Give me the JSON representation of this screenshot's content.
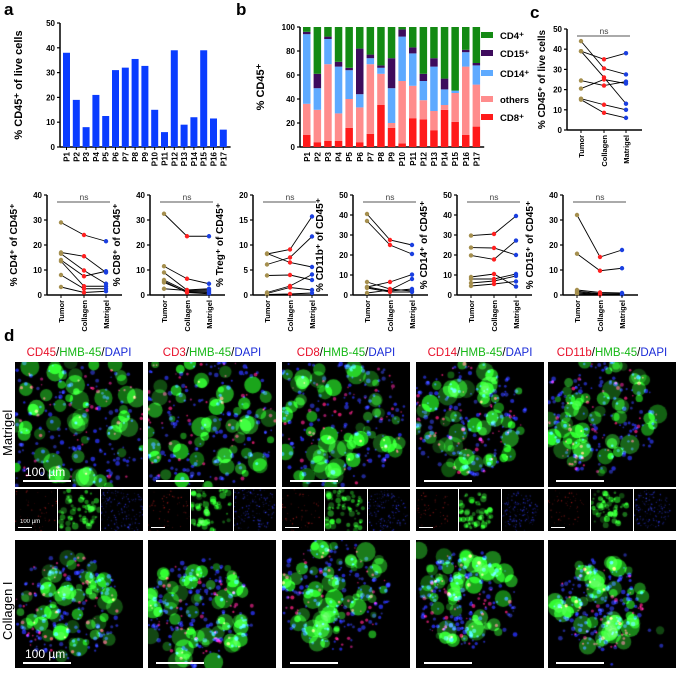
{
  "panels": {
    "a": "a",
    "b": "b",
    "c": "c",
    "d": "d"
  },
  "colors": {
    "bar": "#0a3cff",
    "tumor": "#a58f4e",
    "collagen": "#ff2020",
    "matrigel": "#1a3fe0",
    "CD4": "#138a13",
    "CD15": "#3d0b5c",
    "CD14": "#5eaaff",
    "others": "#ff8c8c",
    "CD8": "#ff1a1a"
  },
  "chart_data": [
    {
      "id": "a",
      "type": "bar",
      "ylabel": "% CD45⁺ of live cells",
      "ylim": [
        0,
        50
      ],
      "yticks": [
        0,
        10,
        20,
        30,
        40,
        50
      ],
      "categories": [
        "P1",
        "P2",
        "P3",
        "P4",
        "P5",
        "P6",
        "P7",
        "P8",
        "P9",
        "P10",
        "P11",
        "P12",
        "P13",
        "P14",
        "P15",
        "P16",
        "P17"
      ],
      "values": [
        38,
        19,
        8,
        21,
        12.5,
        31,
        32,
        35.5,
        32.7,
        15,
        6,
        39,
        9,
        12,
        39,
        11.5,
        7
      ]
    },
    {
      "id": "b",
      "type": "bar",
      "stacked": true,
      "ylabel": "% CD45⁺",
      "ylim": [
        0,
        100
      ],
      "yticks": [
        0,
        20,
        40,
        60,
        80,
        100
      ],
      "legend_position": "right",
      "categories": [
        "P1",
        "P2",
        "P3",
        "P4",
        "P5",
        "P6",
        "P7",
        "P8",
        "P9",
        "P10",
        "P11",
        "P12",
        "P13",
        "P14",
        "P15",
        "P16",
        "P17"
      ],
      "series": [
        {
          "name": "CD8⁺",
          "key": "CD8",
          "values": [
            10,
            4,
            5,
            5,
            16,
            4,
            11,
            35,
            16,
            3,
            24,
            23,
            14,
            31,
            21,
            10,
            17
          ]
        },
        {
          "name": "others",
          "key": "others",
          "values": [
            26,
            27,
            64,
            23,
            24,
            29,
            58,
            26,
            4,
            52,
            27,
            16,
            16,
            4,
            24,
            57,
            35
          ]
        },
        {
          "name": "CD14⁺",
          "key": "CD14",
          "values": [
            58,
            18,
            21,
            39,
            24,
            11,
            5,
            5,
            29,
            37,
            27,
            16,
            37,
            13,
            2,
            12,
            16
          ]
        },
        {
          "name": "CD15⁺",
          "key": "CD15",
          "values": [
            2,
            12,
            2,
            4,
            2,
            38,
            3,
            2,
            25,
            6,
            5,
            6,
            7,
            9,
            0,
            2,
            2
          ]
        },
        {
          "name": "CD4⁺",
          "key": "CD4",
          "values": [
            4,
            39,
            8,
            29,
            34,
            18,
            23,
            32,
            26,
            2,
            17,
            39,
            26,
            43,
            53,
            19,
            30
          ]
        }
      ],
      "legend_order": [
        "CD4",
        "CD15",
        "CD14",
        "others",
        "CD8"
      ]
    },
    {
      "id": "c",
      "type": "scatter",
      "paired": true,
      "ylabel": "% CD45⁺ of live cells",
      "ylim": [
        0,
        50
      ],
      "yticks": [
        0,
        10,
        20,
        30,
        40,
        50
      ],
      "categories": [
        "Tumor",
        "Collagen",
        "Matrigel"
      ],
      "annotation": "ns",
      "pairs": [
        [
          44,
          30.5,
          27.5
        ],
        [
          39,
          35,
          38
        ],
        [
          39,
          26,
          13
        ],
        [
          24.5,
          22,
          24
        ],
        [
          20.5,
          25,
          23
        ],
        [
          15.5,
          12.5,
          10
        ],
        [
          15,
          8.5,
          6
        ]
      ]
    },
    {
      "id": "cd4",
      "type": "scatter",
      "paired": true,
      "ylabel": "% CD4⁺ of  CD45⁺",
      "ylim": [
        0,
        40
      ],
      "yticks": [
        0,
        10,
        20,
        30,
        40
      ],
      "categories": [
        "Tumor",
        "Collagen",
        "Matrigel"
      ],
      "annotation": "ns",
      "pairs": [
        [
          29,
          24,
          21.5
        ],
        [
          17,
          15.5,
          9
        ],
        [
          16.5,
          9.8,
          4.5
        ],
        [
          14,
          7.5,
          9.5
        ],
        [
          13.5,
          3.5,
          3.5
        ],
        [
          8,
          2.5,
          2.5
        ],
        [
          3.2,
          1,
          1.5
        ]
      ]
    },
    {
      "id": "cd8",
      "type": "scatter",
      "paired": true,
      "ylabel": "% CD8⁺ of  CD45⁺",
      "ylim": [
        0,
        40
      ],
      "yticks": [
        0,
        10,
        20,
        30,
        40
      ],
      "categories": [
        "Tumor",
        "Collagen",
        "Matrigel"
      ],
      "annotation": "ns",
      "pairs": [
        [
          32.5,
          23.5,
          23.5
        ],
        [
          11.5,
          6.5,
          4.5
        ],
        [
          9,
          2,
          2.5
        ],
        [
          6,
          1.5,
          1.5
        ],
        [
          5.5,
          1,
          0.5
        ],
        [
          2.5,
          1.8,
          2
        ],
        [
          5,
          1.2,
          1
        ]
      ]
    },
    {
      "id": "treg",
      "type": "scatter",
      "paired": true,
      "ylabel": "% Treg⁺ of CD45⁺",
      "ylim": [
        0,
        20
      ],
      "yticks": [
        0,
        5,
        10,
        15,
        20
      ],
      "categories": [
        "Tumor",
        "Collagen",
        "Matrigel"
      ],
      "annotation": "ns",
      "pairs": [
        [
          8.3,
          6.5,
          5.6
        ],
        [
          8.2,
          9.1,
          15.7
        ],
        [
          6.1,
          7.5,
          11.7
        ],
        [
          3.9,
          4,
          3
        ],
        [
          0.5,
          1.8,
          4.1
        ],
        [
          0.3,
          1.5,
          1
        ],
        [
          0.1,
          0.2,
          0.4
        ]
      ]
    },
    {
      "id": "cd11b",
      "type": "scatter",
      "paired": true,
      "ylabel": "% CD11b⁺ of CD45⁺",
      "ylim": [
        0,
        50
      ],
      "yticks": [
        0,
        10,
        20,
        30,
        40,
        50
      ],
      "categories": [
        "Tumor",
        "Collagen",
        "Matrigel"
      ],
      "annotation": "ns",
      "pairs": [
        [
          40.5,
          27.5,
          25
        ],
        [
          37,
          25,
          20.5
        ],
        [
          6.5,
          3,
          2
        ],
        [
          4,
          6.5,
          10.2
        ],
        [
          4,
          2,
          3
        ],
        [
          1,
          2.5,
          8
        ],
        [
          3.5,
          1.5,
          1.5
        ]
      ]
    },
    {
      "id": "cd14",
      "type": "scatter",
      "paired": true,
      "ylabel": "% CD14⁺ of CD45⁺",
      "ylim": [
        0,
        50
      ],
      "yticks": [
        0,
        10,
        20,
        30,
        40,
        50
      ],
      "categories": [
        "Tumor",
        "Collagen",
        "Matrigel"
      ],
      "annotation": "ns",
      "pairs": [
        [
          29.7,
          30.5,
          39.5
        ],
        [
          23.7,
          23.5,
          20
        ],
        [
          19.8,
          17.8,
          27.2
        ],
        [
          9,
          10.5,
          4.2
        ],
        [
          8,
          8,
          10.5
        ],
        [
          6,
          7,
          9.5
        ],
        [
          4.5,
          5.5,
          6.8
        ]
      ]
    },
    {
      "id": "cd15",
      "type": "scatter",
      "paired": true,
      "ylabel": "% CD15⁺ of  CD45⁺",
      "ylim": [
        0,
        40
      ],
      "yticks": [
        0,
        10,
        20,
        30,
        40
      ],
      "categories": [
        "Tumor",
        "Collagen",
        "Matrigel"
      ],
      "annotation": "ns",
      "pairs": [
        [
          32,
          15.2,
          18
        ],
        [
          16.5,
          9.7,
          10.7
        ],
        [
          2,
          1,
          0.8
        ],
        [
          1.5,
          0.5,
          0.5
        ],
        [
          1,
          0.3,
          0.3
        ],
        [
          0.5,
          0.2,
          0.2
        ]
      ]
    }
  ],
  "images": {
    "headers": [
      {
        "marker": "CD45",
        "sep1": "/",
        "hmb": "HMB-45",
        "sep2": "/",
        "dapi": "DAPI"
      },
      {
        "marker": "CD3",
        "sep1": "/",
        "hmb": "HMB-45",
        "sep2": "/",
        "dapi": "DAPI"
      },
      {
        "marker": "CD8",
        "sep1": "/",
        "hmb": "HMB-45",
        "sep2": "/",
        "dapi": "DAPI"
      },
      {
        "marker": "CD14",
        "sep1": "/",
        "hmb": "HMB-45",
        "sep2": "/",
        "dapi": "DAPI"
      },
      {
        "marker": "CD11b",
        "sep1": "/",
        "hmb": "HMB-45",
        "sep2": "/",
        "dapi": "DAPI"
      }
    ],
    "rows": [
      "Matrigel",
      "Collagen I"
    ],
    "scale_bar": "100 µm"
  }
}
